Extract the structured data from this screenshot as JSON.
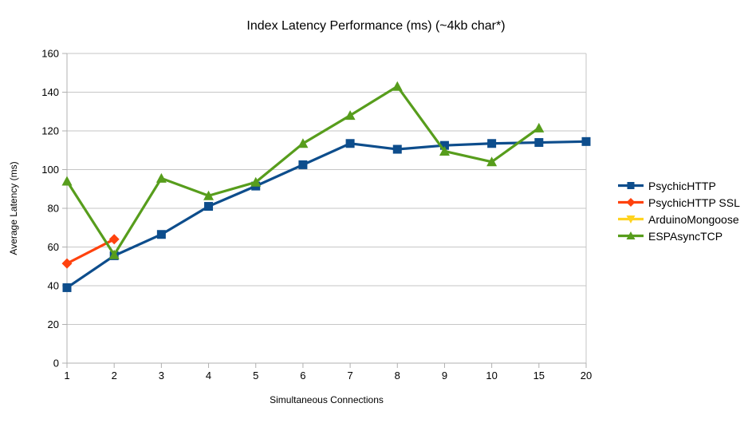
{
  "chart_data": {
    "type": "line",
    "title": "Index Latency Performance (ms) (~4kb char*)",
    "xlabel": "Simultaneous Connections",
    "ylabel": "Average Latency (ms)",
    "categories": [
      "1",
      "2",
      "3",
      "4",
      "5",
      "6",
      "7",
      "8",
      "9",
      "10",
      "15",
      "20"
    ],
    "y_ticks": [
      0,
      20,
      40,
      60,
      80,
      100,
      120,
      140,
      160
    ],
    "ylim": [
      0,
      160
    ],
    "grid": true,
    "legend_position": "right",
    "series": [
      {
        "name": "PsychicHTTP",
        "color": "#0d4d8c",
        "marker": "square",
        "values": [
          39,
          55.5,
          66.5,
          81,
          91.5,
          102.5,
          113.5,
          110.5,
          112.5,
          113.5,
          114,
          114.5
        ]
      },
      {
        "name": "PsychicHTTP SSL",
        "color": "#ff420e",
        "marker": "diamond",
        "values": [
          51.5,
          64,
          null,
          null,
          null,
          null,
          null,
          null,
          null,
          null,
          null,
          null
        ]
      },
      {
        "name": "ArduinoMongoose",
        "color": "#ffd320",
        "marker": "triangle-down",
        "values": [
          null,
          null,
          null,
          null,
          null,
          null,
          null,
          null,
          null,
          null,
          null,
          null
        ]
      },
      {
        "name": "ESPAsyncTCP",
        "color": "#579d1c",
        "marker": "triangle-up",
        "values": [
          94,
          56,
          95.5,
          86.5,
          93.5,
          113.5,
          128,
          143,
          109.5,
          104,
          121.5,
          null
        ]
      }
    ]
  },
  "colors": {
    "gridline": "#c6c6c6",
    "axis": "#b0b0b0",
    "text": "#000000"
  }
}
